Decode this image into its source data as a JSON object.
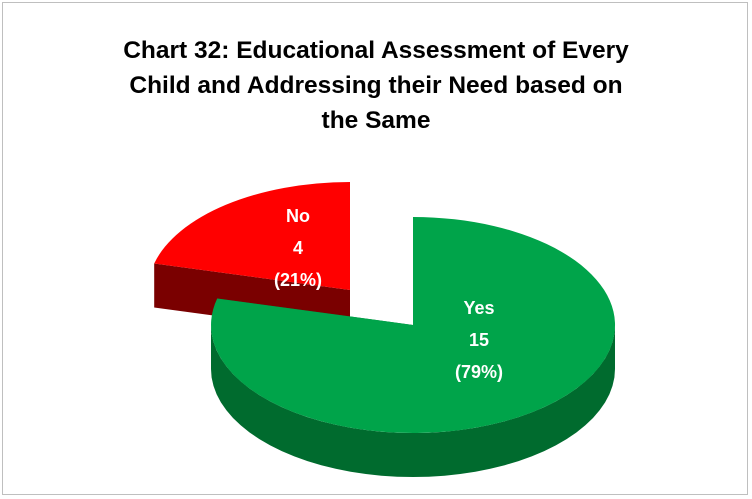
{
  "chart_data": {
    "type": "pie",
    "title_lines": [
      "Chart 32: Educational Assessment of Every",
      "Child and Addressing their Need based on",
      "the Same"
    ],
    "slices": [
      {
        "name": "Yes",
        "value": 15,
        "percent": "(79%)",
        "color": "#00a44a",
        "side_color": "#006b2e"
      },
      {
        "name": "No",
        "value": 4,
        "percent": "(21%)",
        "color": "#ff0000",
        "side_color": "#7a0000"
      }
    ],
    "exploded": true,
    "three_d": true
  }
}
